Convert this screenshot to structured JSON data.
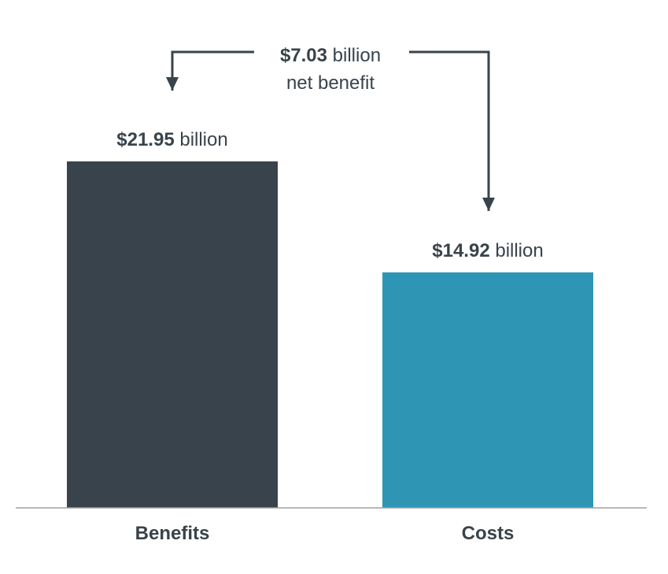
{
  "chart_data": {
    "type": "bar",
    "categories": [
      "Benefits",
      "Costs"
    ],
    "values": [
      21.95,
      14.92
    ],
    "value_labels": [
      {
        "amount": "$21.95",
        "unit": "billion"
      },
      {
        "amount": "$14.92",
        "unit": "billion"
      }
    ],
    "annotation": {
      "amount": "$7.03",
      "unit": "billion",
      "line2": "net benefit",
      "value": 7.03
    },
    "title": "",
    "xlabel": "",
    "ylabel": "",
    "grid": false,
    "legend": "none",
    "colors": {
      "bars": [
        "#38434b",
        "#2e96b4"
      ],
      "text": "#38434b",
      "axis": "#a0a0a0",
      "arrow": "#38434b"
    }
  }
}
